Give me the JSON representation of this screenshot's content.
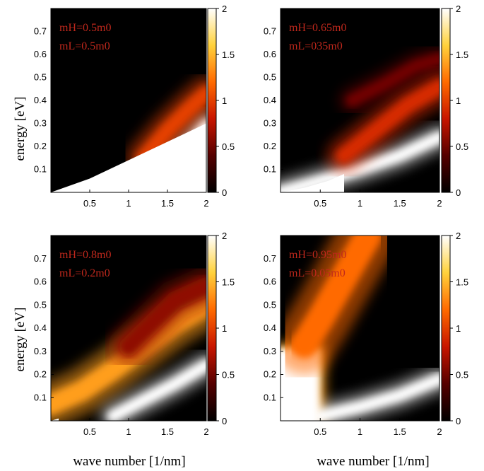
{
  "figure": {
    "xlabel": "wave number [1/nm]",
    "ylabel": "energy [eV]"
  },
  "chart_data": [
    {
      "type": "heatmap",
      "title": "",
      "annotations": [
        "mH=0.5m0",
        "mL=0.5m0"
      ],
      "xlabel": "",
      "ylabel": "energy [eV]",
      "xlim": [
        0,
        2
      ],
      "ylim": [
        0,
        0.8
      ],
      "xticks": [
        "0.5",
        "1",
        "1.5",
        "2"
      ],
      "yticks": [
        "0.1",
        "0.2",
        "0.3",
        "0.4",
        "0.5",
        "0.6",
        "0.7"
      ],
      "colorbar": {
        "range": [
          0,
          2
        ],
        "ticks": [
          "0",
          "0.5",
          "1",
          "1.5",
          "2"
        ],
        "colormap": "hot"
      },
      "features": [
        {
          "kind": "undefined-region",
          "boundary_x": [
            0,
            0.5,
            1.0,
            1.5,
            2.0
          ],
          "boundary_e": [
            0.0,
            0.06,
            0.14,
            0.22,
            0.3
          ]
        },
        {
          "kind": "branch",
          "x": [
            1.0,
            1.25,
            1.5,
            1.75,
            2.0
          ],
          "e": [
            0.01,
            0.05,
            0.11,
            0.19,
            0.29
          ],
          "width_e": 0.06,
          "intensity": 2.0
        },
        {
          "kind": "tail",
          "x": [
            1.2,
            1.5,
            1.8,
            2.0
          ],
          "e": [
            0.15,
            0.27,
            0.37,
            0.43
          ],
          "width_e": 0.07,
          "intensity": 1.0
        }
      ]
    },
    {
      "type": "heatmap",
      "title": "",
      "annotations": [
        "mH=0.65m0",
        "mL=035m0"
      ],
      "xlabel": "",
      "ylabel": "",
      "xlim": [
        0,
        2
      ],
      "ylim": [
        0,
        0.8
      ],
      "xticks": [
        "0.5",
        "1",
        "1.5",
        "2"
      ],
      "yticks": [
        "0.1",
        "0.2",
        "0.3",
        "0.4",
        "0.5",
        "0.6",
        "0.7"
      ],
      "colorbar": {
        "range": [
          0,
          2
        ],
        "ticks": [
          "0",
          "0.5",
          "1",
          "1.5",
          "2"
        ],
        "colormap": "hot"
      },
      "features": [
        {
          "kind": "undefined-region",
          "boundary_x": [
            0,
            0.3,
            0.6,
            0.8
          ],
          "boundary_e": [
            0.0,
            0.02,
            0.05,
            0.08
          ]
        },
        {
          "kind": "branch",
          "x": [
            0.0,
            0.5,
            1.0,
            1.5,
            2.0
          ],
          "e": [
            0.0,
            0.05,
            0.1,
            0.16,
            0.24
          ],
          "width_e": 0.05,
          "intensity": 2.0
        },
        {
          "kind": "branch",
          "x": [
            0.8,
            1.2,
            1.6,
            2.0
          ],
          "e": [
            0.16,
            0.27,
            0.38,
            0.46
          ],
          "width_e": 0.07,
          "intensity": 0.9
        },
        {
          "kind": "branch",
          "x": [
            0.9,
            1.3,
            1.7,
            2.0
          ],
          "e": [
            0.4,
            0.47,
            0.55,
            0.58
          ],
          "width_e": 0.05,
          "intensity": 0.5
        }
      ]
    },
    {
      "type": "heatmap",
      "title": "",
      "annotations": [
        "mH=0.8m0",
        "mL=0.2m0"
      ],
      "xlabel": "wave number [1/nm]",
      "ylabel": "energy [eV]",
      "xlim": [
        0,
        2
      ],
      "ylim": [
        0,
        0.8
      ],
      "xticks": [
        "0.5",
        "1",
        "1.5",
        "2"
      ],
      "yticks": [
        "0.1",
        "0.2",
        "0.3",
        "0.4",
        "0.5",
        "0.6",
        "0.7"
      ],
      "colorbar": {
        "range": [
          0,
          2
        ],
        "ticks": [
          "0",
          "0.5",
          "1",
          "1.5",
          "2"
        ],
        "colormap": "hot"
      },
      "features": [
        {
          "kind": "undefined-region",
          "boundary_x": [
            0,
            0.1
          ],
          "boundary_e": [
            0.0,
            0.01
          ]
        },
        {
          "kind": "branch",
          "x": [
            0.0,
            0.4,
            0.8,
            1.2,
            1.6,
            2.0
          ],
          "e": [
            0.07,
            0.13,
            0.22,
            0.32,
            0.42,
            0.5
          ],
          "width_e": 0.09,
          "intensity": 1.4
        },
        {
          "kind": "branch",
          "x": [
            1.0,
            1.3,
            1.6,
            2.0
          ],
          "e": [
            0.32,
            0.42,
            0.52,
            0.58
          ],
          "width_e": 0.08,
          "intensity": 0.6
        },
        {
          "kind": "branch",
          "x": [
            0.8,
            1.2,
            1.6,
            2.0
          ],
          "e": [
            0.02,
            0.09,
            0.16,
            0.24
          ],
          "width_e": 0.05,
          "intensity": 2.0
        }
      ]
    },
    {
      "type": "heatmap",
      "title": "",
      "annotations": [
        "mH=0.95m0",
        "mL=0.05m0"
      ],
      "xlabel": "wave number [1/nm]",
      "ylabel": "",
      "xlim": [
        0,
        2
      ],
      "ylim": [
        0,
        0.8
      ],
      "xticks": [
        "0.5",
        "1",
        "1.5",
        "2"
      ],
      "yticks": [
        "0.1",
        "0.2",
        "0.3",
        "0.4",
        "0.5",
        "0.6",
        "0.7"
      ],
      "colorbar": {
        "range": [
          0,
          2
        ],
        "ticks": [
          "0",
          "0.5",
          "1",
          "1.5",
          "2"
        ],
        "colormap": "hot"
      },
      "features": [
        {
          "kind": "undefined-region",
          "boundary_x": [
            0,
            0.1
          ],
          "boundary_e": [
            0.0,
            0.01
          ]
        },
        {
          "kind": "block",
          "x_range": [
            0.0,
            0.55
          ],
          "e_range": [
            0.0,
            0.33
          ],
          "intensity": 2.0
        },
        {
          "kind": "branch",
          "x": [
            0.3,
            0.5,
            0.7,
            0.9,
            1.1
          ],
          "e": [
            0.33,
            0.44,
            0.56,
            0.68,
            0.8
          ],
          "width_e": 0.12,
          "intensity": 1.2
        },
        {
          "kind": "branch",
          "x": [
            0.5,
            1.0,
            1.5,
            2.0
          ],
          "e": [
            0.02,
            0.06,
            0.11,
            0.18
          ],
          "width_e": 0.05,
          "intensity": 2.0
        }
      ]
    }
  ]
}
